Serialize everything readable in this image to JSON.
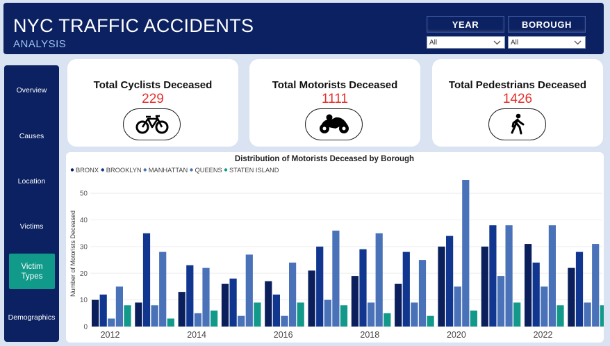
{
  "header": {
    "title": "NYC TRAFFIC ACCIDENTS",
    "subtitle": "ANALYSIS"
  },
  "filters": {
    "year": {
      "label": "YEAR",
      "value": "All"
    },
    "borough": {
      "label": "BOROUGH",
      "value": "All"
    }
  },
  "sidebar": {
    "items": [
      {
        "label": "Overview"
      },
      {
        "label": "Causes"
      },
      {
        "label": "Location"
      },
      {
        "label": "Victims"
      },
      {
        "line1": "Victim",
        "line2": "Types",
        "active": true
      },
      {
        "label": "Demographics"
      }
    ]
  },
  "kpis": [
    {
      "title": "Total Cyclists Deceased",
      "value": "229",
      "icon": "bicycle-icon"
    },
    {
      "title": "Total Motorists Deceased",
      "value": "1111",
      "icon": "motorcycle-icon"
    },
    {
      "title": "Total Pedestrians Deceased",
      "value": "1426",
      "icon": "pedestrian-icon"
    }
  ],
  "colors": {
    "accent_red": "#e5302b",
    "nav_active": "#119a8a",
    "header_bg": "#0b2161"
  },
  "chart_data": {
    "type": "bar",
    "title": "Distribution of Motorists Deceased by Borough",
    "ylabel": "Number of Motorists Deceased",
    "xlabel": "",
    "ylim": [
      0,
      55
    ],
    "yticks": [
      0,
      10,
      20,
      30,
      40,
      50
    ],
    "categories": [
      "2012",
      "2013",
      "2014",
      "2015",
      "2016",
      "2017",
      "2018",
      "2019",
      "2020",
      "2021",
      "2022",
      "2023"
    ],
    "xtick_labels": [
      "2012",
      "2014",
      "2016",
      "2018",
      "2020",
      "2022"
    ],
    "legend_position": "top-left",
    "grid": true,
    "series": [
      {
        "name": "BRONX",
        "color": "#0a1f5c",
        "values": [
          10,
          9,
          13,
          16,
          17,
          21,
          19,
          16,
          30,
          30,
          31,
          22
        ]
      },
      {
        "name": "BROOKLYN",
        "color": "#10368f",
        "values": [
          12,
          35,
          23,
          18,
          12,
          30,
          29,
          28,
          34,
          38,
          24,
          28
        ]
      },
      {
        "name": "MANHATTAN",
        "color": "#4a72b8",
        "values": [
          3,
          8,
          5,
          4,
          4,
          10,
          9,
          9,
          15,
          19,
          15,
          9
        ]
      },
      {
        "name": "QUEENS",
        "color": "#4a72b8",
        "values": [
          15,
          28,
          22,
          27,
          24,
          36,
          35,
          25,
          55,
          38,
          38,
          31
        ]
      },
      {
        "name": "STATEN ISLAND",
        "color": "#12998a",
        "values": [
          8,
          3,
          6,
          9,
          9,
          8,
          5,
          4,
          6,
          9,
          8,
          8
        ]
      }
    ]
  }
}
